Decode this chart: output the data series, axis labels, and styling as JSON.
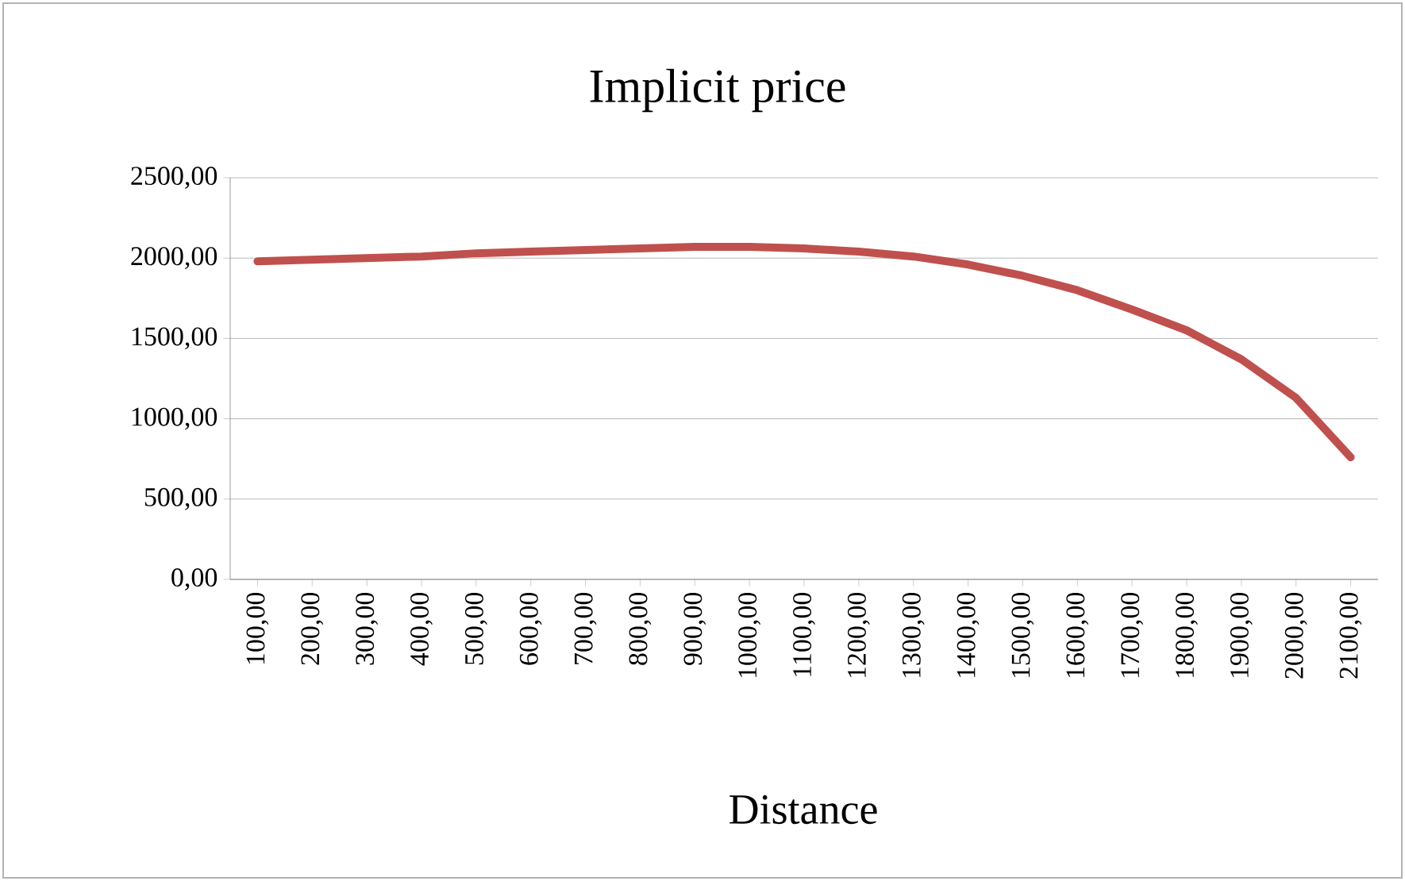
{
  "chart_data": {
    "type": "line",
    "title": "Implicit price",
    "xlabel": "Distance",
    "categories": [
      "100,00",
      "200,00",
      "300,00",
      "400,00",
      "500,00",
      "600,00",
      "700,00",
      "800,00",
      "900,00",
      "1000,00",
      "1100,00",
      "1200,00",
      "1300,00",
      "1400,00",
      "1500,00",
      "1600,00",
      "1700,00",
      "1800,00",
      "1900,00",
      "2000,00",
      "2100,00"
    ],
    "series": [
      {
        "color": "#c0504d",
        "values": [
          1980,
          1990,
          2000,
          2010,
          2030,
          2040,
          2050,
          2060,
          2070,
          2070,
          2060,
          2040,
          2010,
          1960,
          1890,
          1800,
          1680,
          1550,
          1370,
          1130,
          760
        ]
      }
    ],
    "ylim": [
      0,
      2500
    ],
    "yticks": [
      {
        "value": 0,
        "label": "0,00"
      },
      {
        "value": 500,
        "label": "500,00"
      },
      {
        "value": 1000,
        "label": "1000,00"
      },
      {
        "value": 1500,
        "label": "1500,00"
      },
      {
        "value": 2000,
        "label": "2000,00"
      },
      {
        "value": 2500,
        "label": "2500,00"
      }
    ],
    "grid": "y",
    "marker": "none",
    "line_style": "solid"
  }
}
